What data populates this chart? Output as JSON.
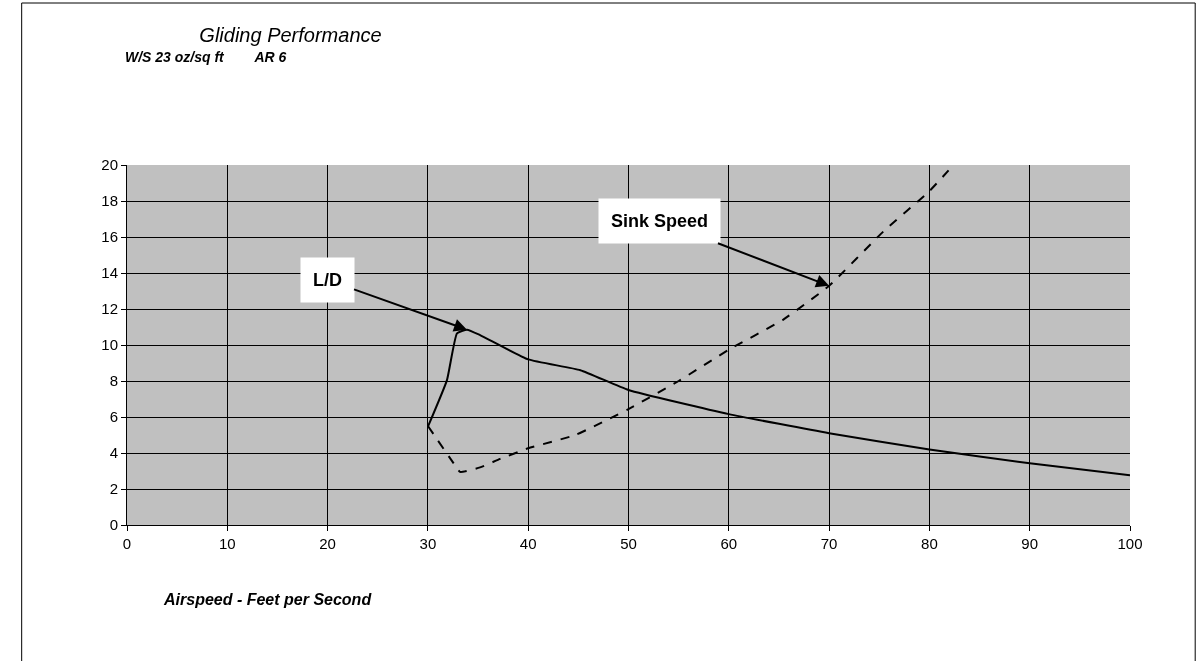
{
  "chart_data": {
    "type": "line",
    "title": "Gliding Performance",
    "subtitle": "W/S 23 oz/sq ft        AR 6",
    "xlabel": "Airspeed - Feet per Second",
    "series": [
      {
        "color": "#000000",
        "line_style": "solid",
        "x": [
          30,
          31.9,
          32.9,
          33.9,
          35.2,
          40,
          45.2,
          50,
          60,
          70,
          80,
          90,
          100
        ],
        "values": [
          5.46,
          8.05,
          10.65,
          10.85,
          10.55,
          9.2,
          8.6,
          7.5,
          6.16,
          5.1,
          4.19,
          3.43,
          2.76
        ]
      },
      {
        "color": "#000000",
        "line_style": "dashed",
        "x": [
          30,
          32.6,
          33.2,
          35.2,
          37.2,
          40,
          44.7,
          50,
          55,
          60,
          65.4,
          70,
          75.4,
          80,
          82.4
        ],
        "values": [
          5.5,
          3.4,
          2.95,
          3.2,
          3.67,
          4.26,
          5.0,
          6.44,
          8.0,
          9.74,
          11.4,
          13.29,
          16.3,
          18.55,
          20
        ]
      }
    ],
    "annotations": [
      {
        "text": "L/D",
        "x": 33.9,
        "y": 10.85
      },
      {
        "text": "Sink Speed",
        "x": 70,
        "y": 13.29
      }
    ],
    "xlim": [
      0,
      100
    ],
    "xticks": [
      0,
      10,
      20,
      30,
      40,
      50,
      60,
      70,
      80,
      90,
      100
    ],
    "ylim": [
      0,
      20
    ],
    "yticks": [
      0,
      2,
      4,
      6,
      8,
      10,
      12,
      14,
      16,
      18,
      20
    ],
    "grid": true
  }
}
